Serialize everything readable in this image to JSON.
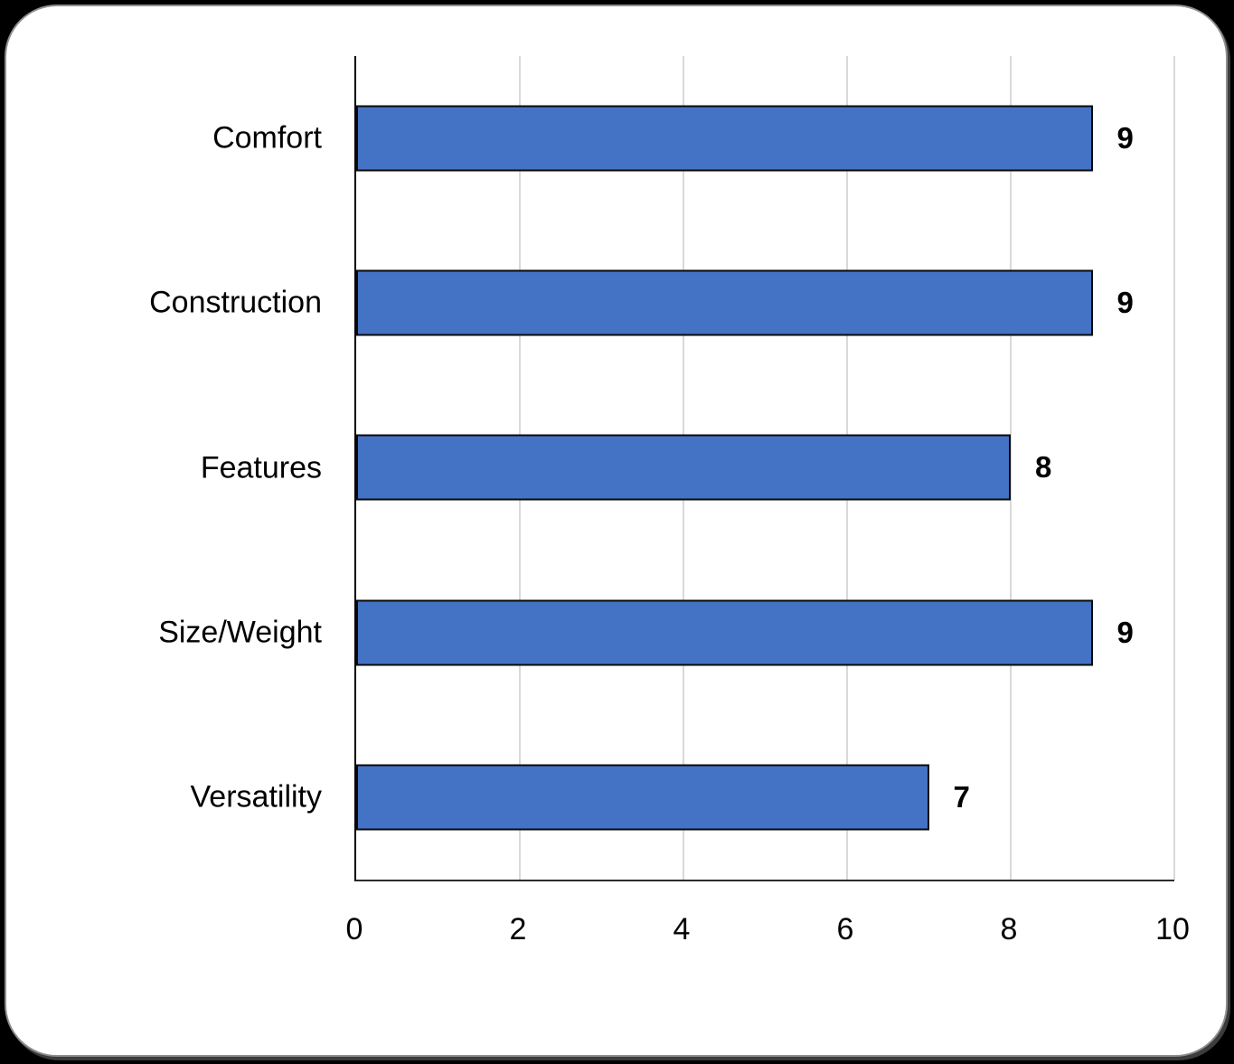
{
  "chart_data": {
    "type": "bar",
    "orientation": "horizontal",
    "title": "",
    "xlabel": "",
    "ylabel": "",
    "categories": [
      "Comfort",
      "Construction",
      "Features",
      "Size/Weight",
      "Versatility"
    ],
    "values": [
      9,
      9,
      8,
      9,
      7
    ],
    "data_labels": [
      "9",
      "9",
      "8",
      "9",
      "7"
    ],
    "xlim": [
      0,
      10
    ],
    "x_ticks": [
      "0",
      "2",
      "4",
      "6",
      "8",
      "10"
    ],
    "x_tick_values": [
      0,
      2,
      4,
      6,
      8,
      10
    ],
    "grid": "vertical-on",
    "legend": "none",
    "bar_color": "#4472C4",
    "bar_border_color": "#0a0a0a",
    "gridline_color": "#d9d9d9",
    "axis_line_color": "#000000",
    "text_color": "#000000",
    "card_background": "#ffffff",
    "page_background": "#000000"
  }
}
